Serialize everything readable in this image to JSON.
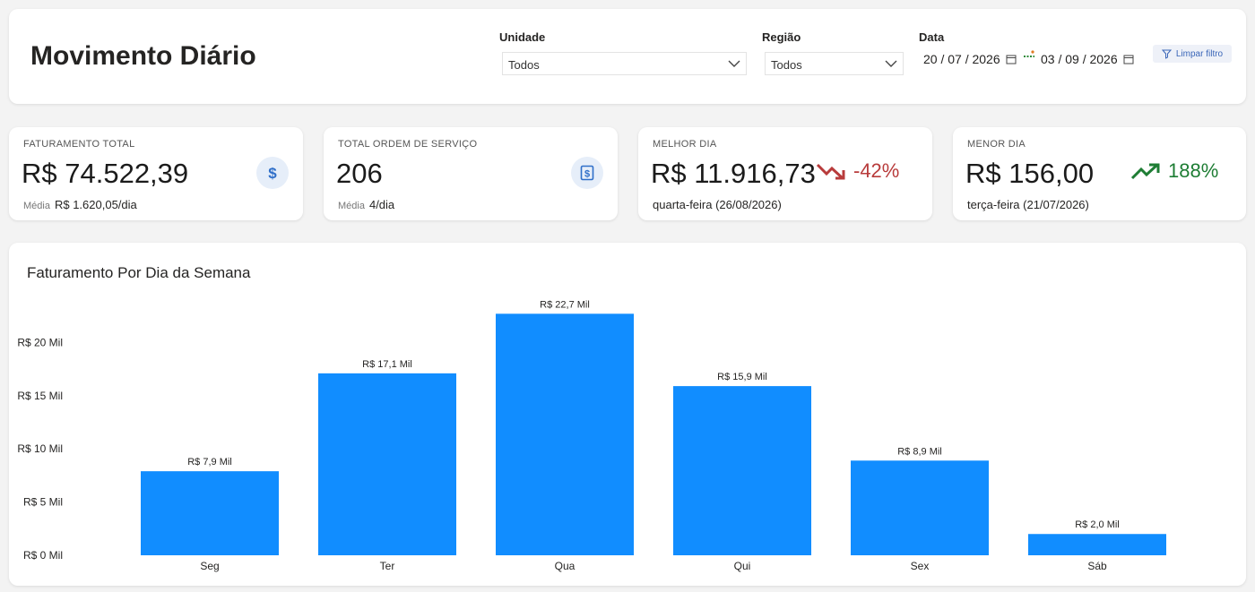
{
  "header": {
    "title": "Movimento Diário",
    "filters": {
      "unidade": {
        "label": "Unidade",
        "value": "Todos"
      },
      "regiao": {
        "label": "Região",
        "value": "Todos"
      },
      "data": {
        "label": "Data",
        "start": "20 / 07 / 2026",
        "end": "03 / 09 / 2026"
      }
    },
    "clear_filter": "Limpar filtro"
  },
  "kpis": {
    "faturamento": {
      "label": "FATURAMENTO TOTAL",
      "value": "R$ 74.522,39",
      "sub_label": "Média",
      "sub_value": "R$ 1.620,05/dia",
      "icon": "dollar-icon"
    },
    "ordens": {
      "label": "TOTAL ORDEM DE SERVIÇO",
      "value": "206",
      "sub_label": "Média",
      "sub_value": "4/dia",
      "icon": "invoice-icon"
    },
    "melhor": {
      "label": "MELHOR DIA",
      "value": "R$ 11.916,73",
      "trend": "-42%",
      "trend_color": "#b83b3b",
      "sub_value": "quarta-feira (26/08/2026)",
      "icon": "trending-down-icon"
    },
    "menor": {
      "label": "MENOR DIA",
      "value": "R$ 156,00",
      "trend": "188%",
      "trend_color": "#1e7d34",
      "sub_value": "terça-feira (21/07/2026)",
      "icon": "trending-up-icon"
    }
  },
  "chart_data": {
    "type": "bar",
    "title": "Faturamento Por Dia da Semana",
    "categories": [
      "Seg",
      "Ter",
      "Qua",
      "Qui",
      "Sex",
      "Sáb"
    ],
    "values": [
      7.9,
      17.1,
      22.7,
      15.9,
      8.9,
      2.0
    ],
    "value_labels": [
      "R$ 7,9 Mil",
      "R$ 17,1 Mil",
      "R$ 22,7 Mil",
      "R$ 15,9 Mil",
      "R$ 8,9 Mil",
      "R$ 2,0 Mil"
    ],
    "yticks": [
      0,
      5,
      10,
      15,
      20
    ],
    "ytick_labels": [
      "R$ 0 Mil",
      "R$ 5 Mil",
      "R$ 10 Mil",
      "R$ 15 Mil",
      "R$ 20 Mil"
    ],
    "ylim": [
      0,
      25
    ],
    "grid": false,
    "bar_color": "#118dff"
  }
}
